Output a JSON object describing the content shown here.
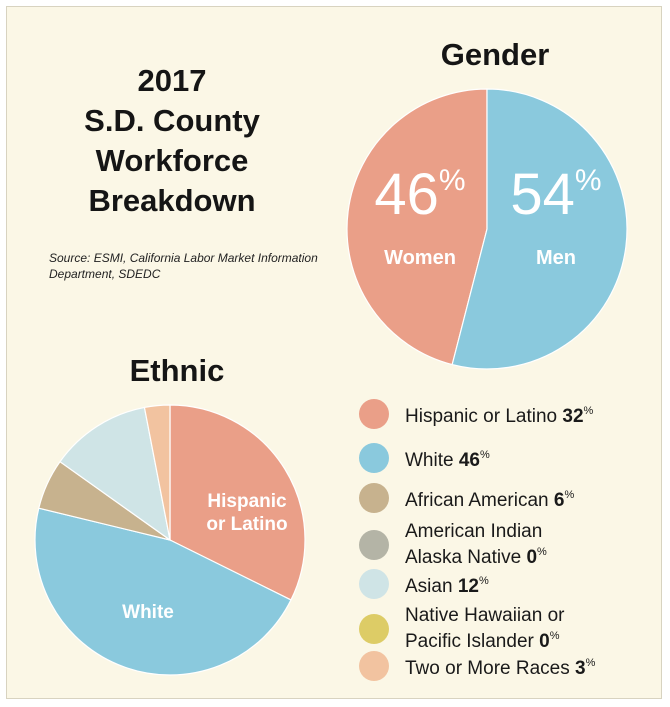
{
  "title_lines": [
    "2017",
    "S.D. County",
    "Workforce",
    "Breakdown"
  ],
  "source": "Source: ESMI, California Labor Market Information Department, SDEDC",
  "chart_data": [
    {
      "type": "pie",
      "title": "Gender",
      "slices": [
        {
          "label": "Women",
          "value": 46,
          "display": "46",
          "unit": "%",
          "color": "#ea9f88"
        },
        {
          "label": "Men",
          "value": 54,
          "display": "54",
          "unit": "%",
          "color": "#8ac9dd"
        }
      ]
    },
    {
      "type": "pie",
      "title": "Ethnic",
      "slices": [
        {
          "label": "Hispanic or Latino",
          "value": 32,
          "color": "#ea9f88",
          "pie_label_lines": [
            "Hispanic",
            "or Latino"
          ]
        },
        {
          "label": "White",
          "value": 46,
          "color": "#8ac9dd",
          "pie_label_lines": [
            "White"
          ]
        },
        {
          "label": "African American",
          "value": 6,
          "color": "#c7b28e"
        },
        {
          "label": "American Indian Alaska Native",
          "value": 0,
          "color": "#b4b4a6"
        },
        {
          "label": "Asian",
          "value": 12,
          "color": "#cfe4e6"
        },
        {
          "label": "Native Hawaiian or Pacific Islander",
          "value": 0,
          "color": "#ddcc66"
        },
        {
          "label": "Two or More Races",
          "value": 3,
          "color": "#f2c3a0"
        }
      ],
      "legend": [
        {
          "text": "Hispanic or Latino",
          "value": "32",
          "unit": "%",
          "color": "#ea9f88"
        },
        {
          "text": "White",
          "value": "46",
          "unit": "%",
          "color": "#8ac9dd"
        },
        {
          "text": "African American",
          "value": "6",
          "unit": "%",
          "color": "#c7b28e"
        },
        {
          "text": "American Indian\nAlaska Native",
          "value": "0",
          "unit": "%",
          "color": "#b4b4a6"
        },
        {
          "text": "Asian",
          "value": "12",
          "unit": "%",
          "color": "#cfe4e6"
        },
        {
          "text": "Native Hawaiian or\nPacific Islander",
          "value": "0",
          "unit": "%",
          "color": "#ddcc66"
        },
        {
          "text": "Two or More Races",
          "value": "3",
          "unit": "%",
          "color": "#f2c3a0"
        }
      ]
    }
  ]
}
